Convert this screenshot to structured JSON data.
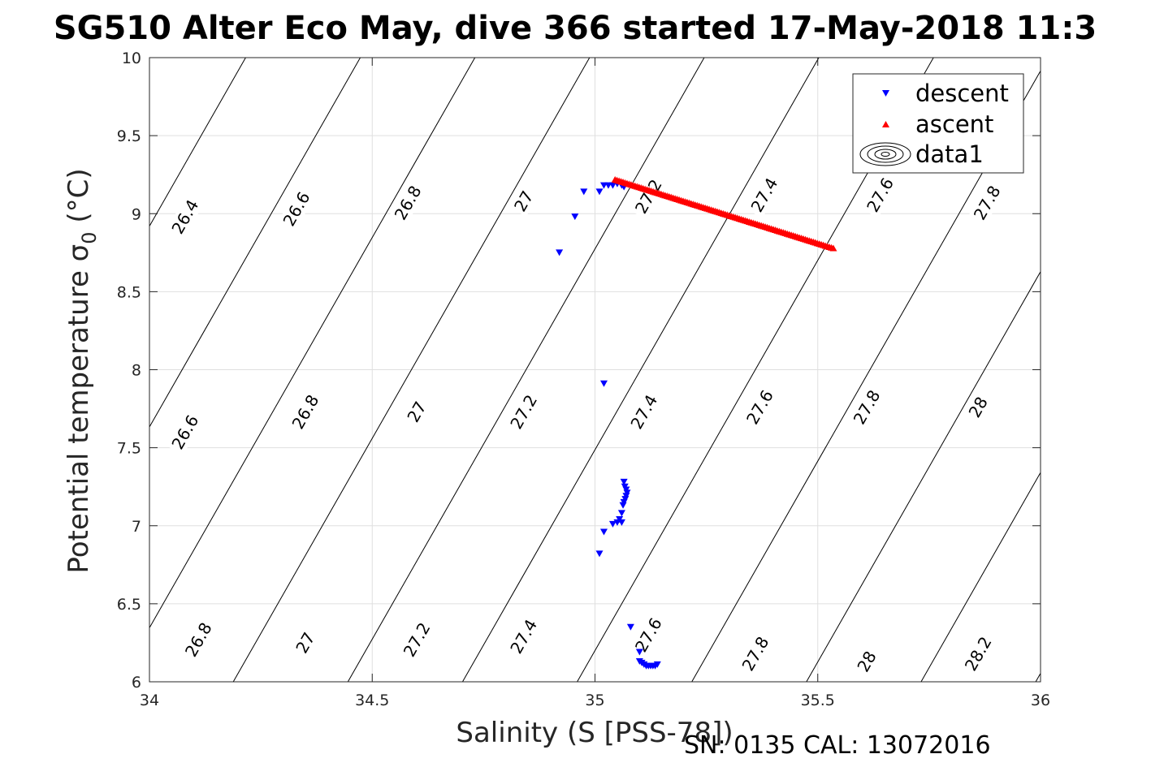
{
  "chart_data": {
    "type": "scatter",
    "title": "SG510 Alter Eco May, dive 366 started 17-May-2018 11:3",
    "xlabel": "Salinity (S [PSS-78])",
    "ylabel": "Potential temperature σ",
    "ylabel_subscript": "0",
    "ylabel_unit": " (°C)",
    "xlim": [
      34,
      36
    ],
    "ylim": [
      6,
      10
    ],
    "xticks": [
      34,
      34.5,
      35,
      35.5,
      36
    ],
    "yticks": [
      6,
      6.5,
      7,
      7.5,
      8,
      8.5,
      9,
      9.5,
      10
    ],
    "grid": true,
    "legend_location": "top-right",
    "legend": [
      "descent",
      "ascent",
      "data1"
    ],
    "footer": "SN: 0135  CAL: 13072016",
    "colors": {
      "descent": "#0000ff",
      "ascent": "#ff0000",
      "contour": "#000000",
      "grid": "#dfdfdf",
      "axis": "#262626"
    },
    "series": [
      {
        "name": "descent",
        "marker": "triangle-down",
        "points": [
          [
            34.92,
            8.75
          ],
          [
            34.955,
            8.98
          ],
          [
            34.975,
            9.14
          ],
          [
            35.01,
            9.14
          ],
          [
            35.02,
            9.18
          ],
          [
            35.03,
            9.18
          ],
          [
            35.04,
            9.18
          ],
          [
            35.05,
            9.19
          ],
          [
            35.06,
            9.18
          ],
          [
            35.065,
            9.17
          ],
          [
            35.02,
            7.91
          ],
          [
            35.065,
            7.28
          ],
          [
            35.067,
            7.25
          ],
          [
            35.07,
            7.23
          ],
          [
            35.072,
            7.21
          ],
          [
            35.07,
            7.19
          ],
          [
            35.068,
            7.17
          ],
          [
            35.065,
            7.15
          ],
          [
            35.063,
            7.13
          ],
          [
            35.06,
            7.08
          ],
          [
            35.055,
            7.04
          ],
          [
            35.06,
            7.02
          ],
          [
            35.05,
            7.02
          ],
          [
            35.04,
            7.01
          ],
          [
            35.02,
            6.96
          ],
          [
            35.01,
            6.82
          ],
          [
            35.08,
            6.35
          ],
          [
            35.1,
            6.19
          ],
          [
            35.1,
            6.13
          ],
          [
            35.105,
            6.12
          ],
          [
            35.11,
            6.11
          ],
          [
            35.115,
            6.1
          ],
          [
            35.12,
            6.1
          ],
          [
            35.125,
            6.1
          ],
          [
            35.13,
            6.1
          ],
          [
            35.135,
            6.1
          ],
          [
            35.14,
            6.11
          ]
        ]
      },
      {
        "name": "ascent",
        "marker": "triangle-up",
        "start": [
          35.045,
          9.22
        ],
        "end": [
          35.535,
          8.78
        ],
        "count": 110
      }
    ],
    "contours": {
      "name": "data1",
      "levels": [
        26.4,
        26.6,
        26.8,
        27.0,
        27.2,
        27.4,
        27.6,
        27.8,
        28.0,
        28.2
      ],
      "labels": [
        {
          "text": "26.4",
          "s": 34.08,
          "t": 8.98
        },
        {
          "text": "26.6",
          "s": 34.33,
          "t": 9.03
        },
        {
          "text": "26.8",
          "s": 34.58,
          "t": 9.07
        },
        {
          "text": "27",
          "s": 34.84,
          "t": 9.08
        },
        {
          "text": "27.2",
          "s": 35.12,
          "t": 9.11
        },
        {
          "text": "27.4",
          "s": 35.38,
          "t": 9.12
        },
        {
          "text": "27.6",
          "s": 35.64,
          "t": 9.12
        },
        {
          "text": "27.8",
          "s": 35.88,
          "t": 9.07
        },
        {
          "text": "26.6",
          "s": 34.08,
          "t": 7.6
        },
        {
          "text": "26.8",
          "s": 34.35,
          "t": 7.73
        },
        {
          "text": "27",
          "s": 34.6,
          "t": 7.73
        },
        {
          "text": "27.2",
          "s": 34.84,
          "t": 7.73
        },
        {
          "text": "27.4",
          "s": 35.11,
          "t": 7.73
        },
        {
          "text": "27.6",
          "s": 35.37,
          "t": 7.76
        },
        {
          "text": "27.8",
          "s": 35.61,
          "t": 7.76
        },
        {
          "text": "28",
          "s": 35.86,
          "t": 7.76
        },
        {
          "text": "26.8",
          "s": 34.11,
          "t": 6.27
        },
        {
          "text": "27",
          "s": 34.35,
          "t": 6.25
        },
        {
          "text": "27.2",
          "s": 34.6,
          "t": 6.27
        },
        {
          "text": "27.4",
          "s": 34.84,
          "t": 6.29
        },
        {
          "text": "27.6",
          "s": 35.12,
          "t": 6.3
        },
        {
          "text": "27.8",
          "s": 35.36,
          "t": 6.18
        },
        {
          "text": "28",
          "s": 35.61,
          "t": 6.13
        },
        {
          "text": "28.2",
          "s": 35.86,
          "t": 6.18
        }
      ]
    }
  }
}
